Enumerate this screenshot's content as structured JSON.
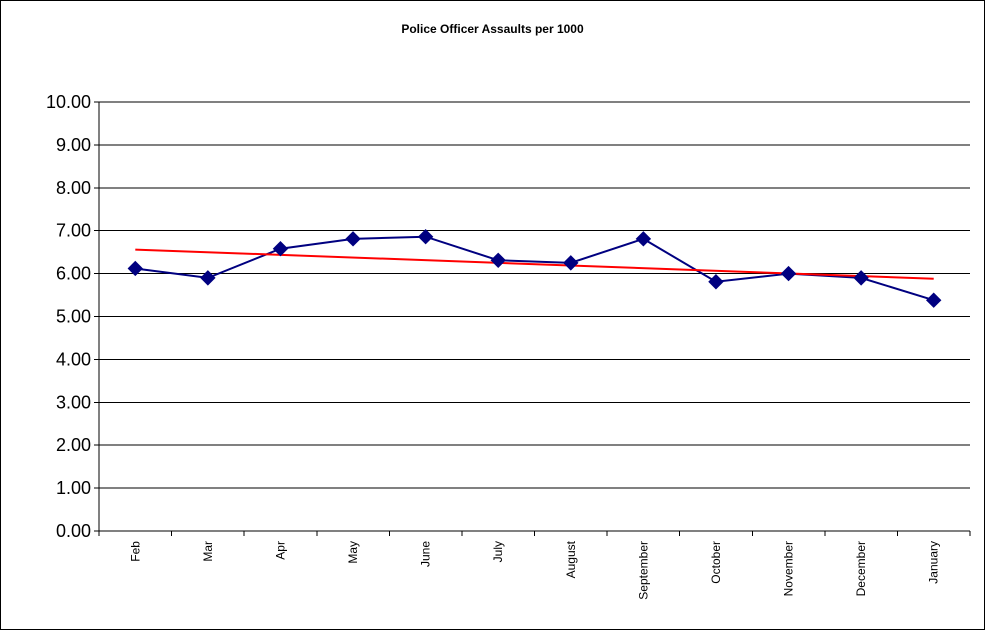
{
  "chart_data": {
    "type": "line",
    "title": "Police Officer Assaults per 1000",
    "xlabel": "",
    "ylabel": "",
    "categories": [
      "Feb",
      "Mar",
      "Apr",
      "May",
      "June",
      "July",
      "August",
      "September",
      "October",
      "November",
      "December",
      "January"
    ],
    "series": [
      {
        "values": [
          6.12,
          5.9,
          6.58,
          6.81,
          6.86,
          6.31,
          6.25,
          6.81,
          5.81,
          6.0,
          5.9,
          5.38
        ],
        "color": "#000080",
        "marker": "diamond"
      }
    ],
    "trendline": {
      "type": "linear",
      "start": 6.56,
      "end": 5.88,
      "color": "#ff0000"
    },
    "ylim": [
      0,
      10
    ],
    "yticks": [
      "0.00",
      "1.00",
      "2.00",
      "3.00",
      "4.00",
      "5.00",
      "6.00",
      "7.00",
      "8.00",
      "9.00",
      "10.00"
    ],
    "grid": true,
    "legend": "none"
  }
}
